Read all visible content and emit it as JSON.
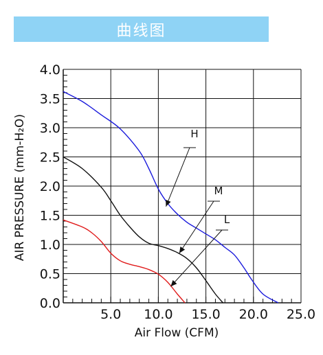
{
  "header": {
    "title": "曲线图"
  },
  "chart_data": {
    "type": "line",
    "title": "曲线图",
    "xlabel": "Air Flow (CFM)",
    "ylabel": "AIR PRESSURE (mm-H₂O)",
    "xlim": [
      0,
      25
    ],
    "ylim": [
      0,
      4
    ],
    "x_ticks": [
      5,
      10,
      15,
      20,
      25
    ],
    "x_tick_labels": [
      "5.0",
      "10.0",
      "15.0",
      "20.0",
      "25.0"
    ],
    "y_ticks": [
      0,
      0.5,
      1,
      1.5,
      2,
      2.5,
      3,
      3.5,
      4
    ],
    "y_tick_labels": [
      "0.0",
      "0.5",
      "1.0",
      "1.5",
      "2.0",
      "2.5",
      "3.0",
      "3.5",
      "4.0"
    ],
    "grid": true,
    "series": [
      {
        "name": "H",
        "color": "#1a1adc",
        "x": [
          0,
          2,
          4,
          6,
          8,
          9,
          10,
          11,
          12,
          13,
          14,
          15,
          16,
          17,
          18,
          19,
          19.8,
          21,
          22.6
        ],
        "y": [
          3.62,
          3.45,
          3.22,
          2.98,
          2.6,
          2.3,
          1.95,
          1.7,
          1.52,
          1.38,
          1.28,
          1.18,
          1.08,
          0.95,
          0.82,
          0.6,
          0.4,
          0.15,
          0.0
        ]
      },
      {
        "name": "M",
        "color": "#111111",
        "x": [
          0,
          2,
          4,
          5,
          6,
          7,
          8,
          9,
          10,
          11,
          12,
          13,
          14,
          15,
          16,
          16.8
        ],
        "y": [
          2.5,
          2.3,
          1.98,
          1.75,
          1.5,
          1.3,
          1.13,
          1.02,
          0.98,
          0.93,
          0.86,
          0.76,
          0.6,
          0.38,
          0.15,
          0.0
        ]
      },
      {
        "name": "L",
        "color": "#e01a1a",
        "x": [
          0,
          2,
          3,
          4,
          5,
          6,
          7,
          8,
          9,
          10,
          11,
          12,
          12.8
        ],
        "y": [
          1.42,
          1.3,
          1.2,
          1.05,
          0.85,
          0.72,
          0.66,
          0.62,
          0.57,
          0.49,
          0.35,
          0.15,
          0.0
        ]
      }
    ],
    "annotations": [
      {
        "text": "H",
        "series": "H",
        "target": [
          10.8,
          1.65
        ]
      },
      {
        "text": "M",
        "series": "M",
        "target": [
          12.2,
          0.85
        ]
      },
      {
        "text": "L",
        "series": "L",
        "target": [
          11.3,
          0.28
        ]
      }
    ]
  }
}
